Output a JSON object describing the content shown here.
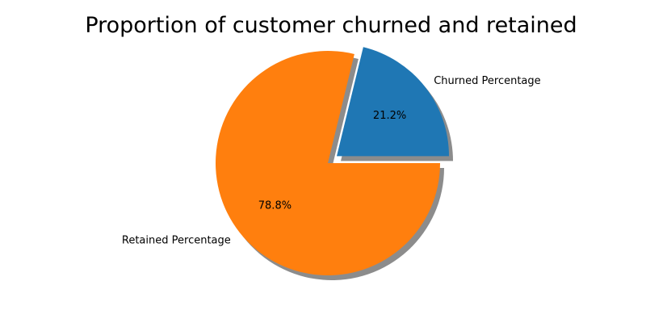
{
  "chart_data": {
    "type": "pie",
    "title": "Proportion of customer churned and retained",
    "slices": [
      {
        "label": "Churned Percentage",
        "value": 21.2,
        "pct_label": "21.2%",
        "color": "#1f77b4",
        "exploded": true
      },
      {
        "label": "Retained Percentage",
        "value": 78.8,
        "pct_label": "78.8%",
        "color": "#ff7f0e",
        "exploded": false
      }
    ],
    "shadow": true,
    "start_angle_deg": 0,
    "direction": "counterclockwise"
  }
}
